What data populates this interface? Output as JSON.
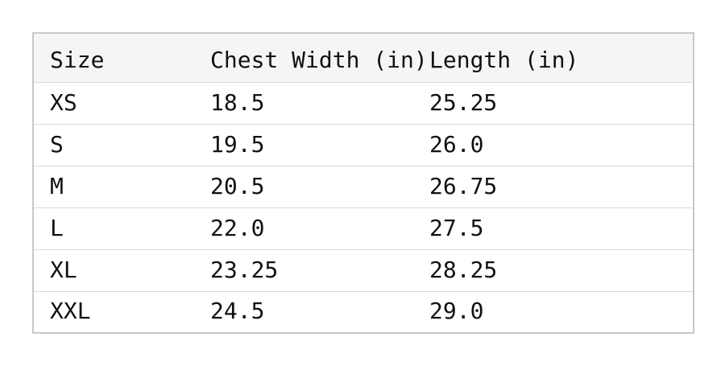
{
  "table": {
    "headers": [
      "Size",
      "Chest Width (in)",
      "Length (in)"
    ],
    "column_keys": [
      "size",
      "chest-width",
      "length"
    ],
    "rows": [
      [
        "XS",
        "18.5",
        "25.25"
      ],
      [
        "S",
        "19.5",
        "26.0"
      ],
      [
        "M",
        "20.5",
        "26.75"
      ],
      [
        "L",
        "22.0",
        "27.5"
      ],
      [
        "XL",
        "23.25",
        "28.25"
      ],
      [
        "XXL",
        "24.5",
        "29.0"
      ]
    ]
  },
  "chart_data": {
    "type": "table",
    "columns": [
      "Size",
      "Chest Width (in)",
      "Length (in)"
    ],
    "rows": [
      {
        "size": "XS",
        "chest_width_in": 18.5,
        "length_in": 25.25
      },
      {
        "size": "S",
        "chest_width_in": 19.5,
        "length_in": 26.0
      },
      {
        "size": "M",
        "chest_width_in": 20.5,
        "length_in": 26.75
      },
      {
        "size": "L",
        "chest_width_in": 22.0,
        "length_in": 27.5
      },
      {
        "size": "XL",
        "chest_width_in": 23.25,
        "length_in": 28.25
      },
      {
        "size": "XXL",
        "chest_width_in": 24.5,
        "length_in": 29.0
      }
    ],
    "layout": {
      "gridlines": "horizontal-only",
      "header_shaded": true
    }
  },
  "colors": {
    "page_bg": "#ffffff",
    "header_bg": "#f5f5f5",
    "outer_border": "#c8c8c8",
    "row_divider": "#d9d9d9",
    "text": "#111111"
  }
}
